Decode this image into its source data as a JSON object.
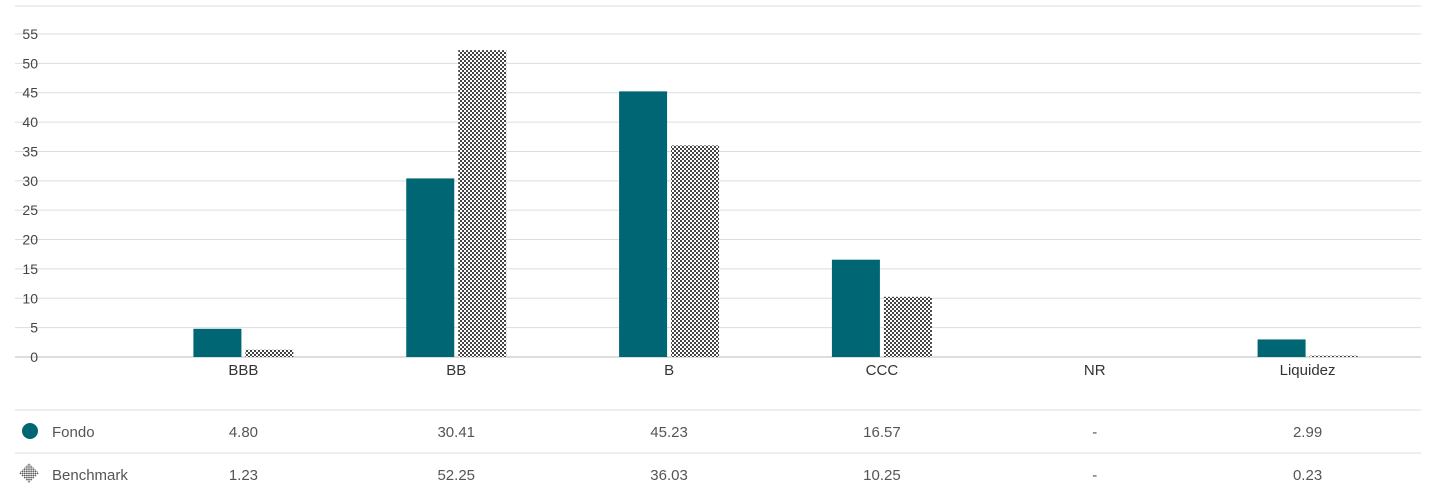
{
  "colors": {
    "fondo": "#006673",
    "benchmark": "#444444",
    "grid": "#dddddd"
  },
  "chart_data": {
    "type": "bar",
    "categories": [
      "BBB",
      "BB",
      "B",
      "CCC",
      "NR",
      "Liquidez"
    ],
    "ylim": [
      0,
      55
    ],
    "yticks": [
      0,
      5,
      10,
      15,
      20,
      25,
      30,
      35,
      40,
      45,
      50,
      55
    ],
    "grid": true,
    "legend": "table-below",
    "series": [
      {
        "name": "Fondo",
        "values": [
          4.8,
          30.41,
          45.23,
          16.57,
          null,
          2.99
        ],
        "labels": [
          "4.80",
          "30.41",
          "45.23",
          "16.57",
          "-",
          "2.99"
        ],
        "color": "#006673",
        "pattern": "solid"
      },
      {
        "name": "Benchmark",
        "values": [
          1.23,
          52.25,
          36.03,
          10.25,
          null,
          0.23
        ],
        "labels": [
          "1.23",
          "52.25",
          "36.03",
          "10.25",
          "-",
          "0.23"
        ],
        "color": "#444444",
        "pattern": "checker"
      }
    ]
  }
}
